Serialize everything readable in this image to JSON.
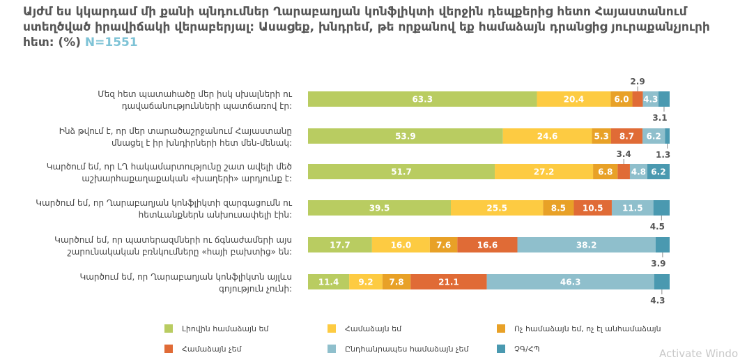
{
  "title": "Այժմ ես կկարդամ մի քանի պնդումներ Ղարաբաղյան կոնֆլիկտի վերջին դեպքերից հետո Հայաստանում ստեղծված իրավիճակի վերաբերյալ: Ասացեք, խնդրեմ, թե որքանով եք համաձայն դրանցից յուրաքանչյուրի հետ: (%)",
  "sample_size": "N=1551",
  "watermark": "Activate Windo",
  "chart_data": {
    "type": "bar",
    "orientation": "horizontal",
    "stacked": true,
    "xlim": [
      0,
      100
    ],
    "categories": [
      [
        "Մեզ հետ պատահածը մեր իսկ սխալների ու",
        "դավաճանությունների պատճառով էր:"
      ],
      [
        "Ինձ թվում է, որ մեր տարածաշրջանում Հայաստանը",
        "մնացել է իր խնդիրների հետ մեն-մենակ:"
      ],
      [
        "Կարծում եմ, որ ԼՂ հակամարտությունը շատ ավելի մեծ",
        "աշխարհաքաղաքական «խաղերի» արդյունք է:"
      ],
      [
        "Կարծում եմ, որ Ղարաբաղյան կոնֆլիկտի զարգացումն ու",
        "հետևանքներն անխուսափելի էին:"
      ],
      [
        "Կարծում եմ, որ պատերազմների ու ճգնաժամերի այս",
        "շարունակական բռնկումները «հայի բախտից» են:"
      ],
      [
        "Կարծում եմ, որ Ղարաբաղյան կոնֆլիկտն այլևս",
        "գոյություն չունի:"
      ]
    ],
    "series": [
      {
        "name": "Լիովին համաձայն եմ",
        "color": "#b9cc61",
        "values": [
          63.3,
          53.9,
          51.7,
          39.5,
          17.7,
          11.4
        ]
      },
      {
        "name": "Համաձայն եմ",
        "color": "#fdcb42",
        "values": [
          20.4,
          24.6,
          27.2,
          25.5,
          16.0,
          9.2
        ]
      },
      {
        "name": "Ոչ համաձայն եմ, ոչ էլ անհամաձայն",
        "color": "#e8a127",
        "values": [
          6.0,
          5.3,
          6.8,
          8.5,
          7.6,
          7.8
        ]
      },
      {
        "name": "Համաձայն չեմ",
        "color": "#e06b36",
        "values": [
          2.9,
          8.7,
          3.4,
          10.5,
          16.6,
          21.1
        ]
      },
      {
        "name": "Ընդհանրապես համաձայն չեմ",
        "color": "#8fbfcc",
        "values": [
          4.3,
          6.2,
          4.8,
          11.5,
          38.2,
          46.3
        ]
      },
      {
        "name": "ՉԳ/ՀՊ",
        "color": "#4a99b0",
        "values": [
          3.1,
          1.3,
          6.2,
          4.5,
          3.9,
          4.3
        ]
      }
    ],
    "inside_labels": [
      [
        "63.3",
        "20.4",
        "6.0",
        "",
        "4.3",
        ""
      ],
      [
        "53.9",
        "24.6",
        "5.3",
        "8.7",
        "6.2",
        ""
      ],
      [
        "51.7",
        "27.2",
        "6.8",
        "",
        "4.8",
        "6.2"
      ],
      [
        "39.5",
        "25.5",
        "8.5",
        "10.5",
        "11.5",
        ""
      ],
      [
        "17.7",
        "16.0",
        "7.6",
        "16.6",
        "38.2",
        ""
      ],
      [
        "11.4",
        "9.2",
        "7.8",
        "21.1",
        "46.3",
        ""
      ]
    ],
    "outside_labels": [
      {
        "row": 0,
        "series": 3,
        "text": "2.9",
        "pos": "above"
      },
      {
        "row": 0,
        "series": 5,
        "text": "3.1",
        "pos": "below"
      },
      {
        "row": 1,
        "series": 5,
        "text": "1.3",
        "pos": "below"
      },
      {
        "row": 2,
        "series": 3,
        "text": "3.4",
        "pos": "above"
      },
      {
        "row": 3,
        "series": 5,
        "text": "4.5",
        "pos": "below"
      },
      {
        "row": 4,
        "series": 5,
        "text": "3.9",
        "pos": "below"
      },
      {
        "row": 5,
        "series": 5,
        "text": "4.3",
        "pos": "below"
      }
    ],
    "legend": {
      "placement": "bottom",
      "items": [
        "Լիովին համաձայն եմ",
        "Համաձայն եմ",
        "Ոչ համաձայն եմ, ոչ էլ անհամաձայն",
        "Համաձայն չեմ",
        "Ընդհանրապես համաձայն չեմ",
        "ՉԳ/ՀՊ"
      ]
    }
  }
}
